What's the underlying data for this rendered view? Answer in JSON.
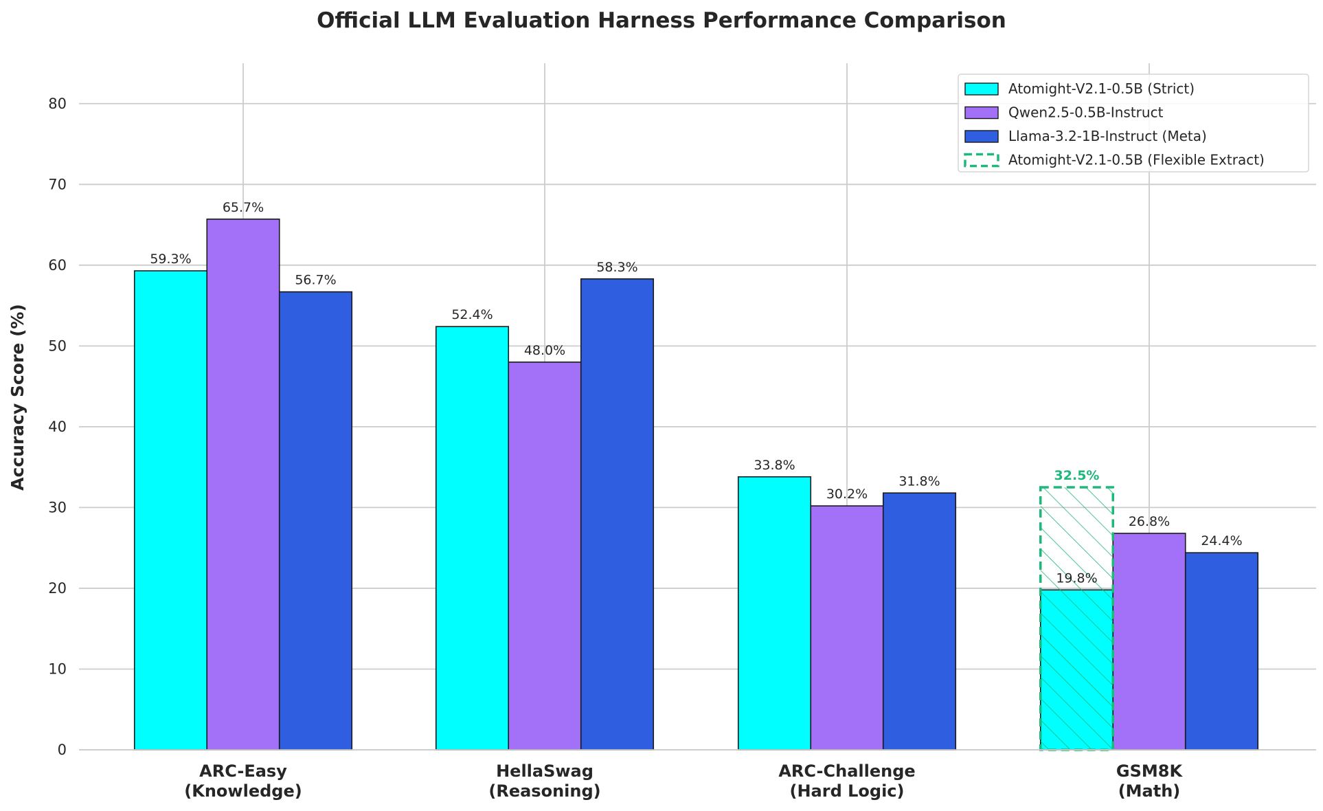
{
  "chart_data": {
    "type": "bar",
    "title": "Official LLM Evaluation Harness Performance Comparison",
    "xlabel": "",
    "ylabel": "Accuracy Score (%)",
    "ylim": [
      0,
      85
    ],
    "yticks": [
      0,
      10,
      20,
      30,
      40,
      50,
      60,
      70,
      80
    ],
    "grid": true,
    "legend_position": "top-right",
    "categories": [
      [
        "ARC-Easy",
        "(Knowledge)"
      ],
      [
        "HellaSwag",
        "(Reasoning)"
      ],
      [
        "ARC-Challenge",
        "(Hard Logic)"
      ],
      [
        "GSM8K",
        "(Math)"
      ]
    ],
    "series": [
      {
        "name": "Atomight-V2.1-0.5B (Strict)",
        "color": "#00FFFF",
        "values": [
          59.3,
          52.4,
          33.8,
          19.8
        ],
        "labels": [
          "59.3%",
          "52.4%",
          "33.8%",
          "19.8%"
        ]
      },
      {
        "name": "Qwen2.5-0.5B-Instruct",
        "color": "#A371F7",
        "values": [
          65.7,
          48.0,
          30.2,
          26.8
        ],
        "labels": [
          "65.7%",
          "48.0%",
          "30.2%",
          "26.8%"
        ]
      },
      {
        "name": "Llama-3.2-1B-Instruct (Meta)",
        "color": "#2F5FE0",
        "values": [
          56.7,
          58.3,
          31.8,
          24.4
        ],
        "labels": [
          "56.7%",
          "58.3%",
          "31.8%",
          "24.4%"
        ]
      }
    ],
    "overlay": {
      "name": "Atomight-V2.1-0.5B (Flexible Extract)",
      "color": "#1DB87A",
      "category_index": 3,
      "value": 32.5,
      "label": "32.5%",
      "style": "dashed-hatched"
    }
  }
}
